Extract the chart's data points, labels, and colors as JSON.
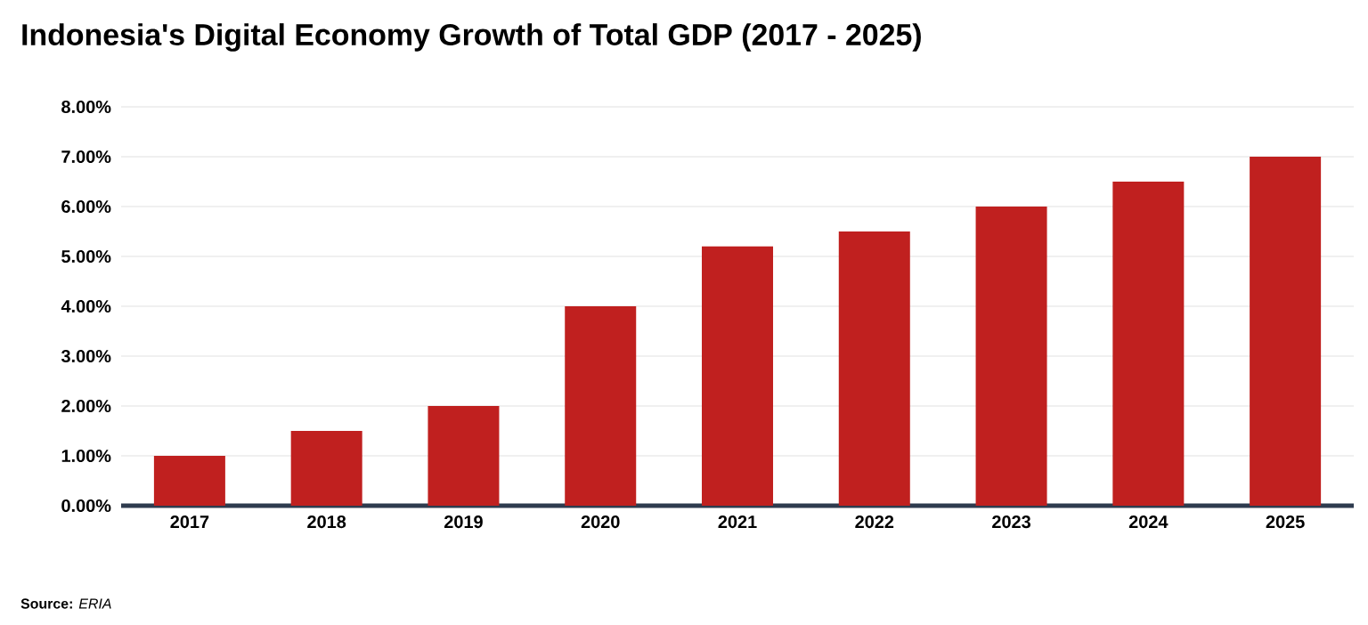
{
  "chart_data": {
    "type": "bar",
    "title": "Indonesia's Digital Economy Growth of Total GDP (2017 - 2025)",
    "categories": [
      "2017",
      "2018",
      "2019",
      "2020",
      "2021",
      "2022",
      "2023",
      "2024",
      "2025"
    ],
    "values": [
      1.0,
      1.5,
      2.0,
      4.0,
      5.2,
      5.5,
      6.0,
      6.5,
      7.0
    ],
    "color": "#c0201f",
    "ylim": [
      0,
      8
    ],
    "yticks": [
      {
        "value": 0,
        "label": "0.00%"
      },
      {
        "value": 1,
        "label": "1.00%"
      },
      {
        "value": 2,
        "label": "2.00%"
      },
      {
        "value": 3,
        "label": "3.00%"
      },
      {
        "value": 4,
        "label": "4.00%"
      },
      {
        "value": 5,
        "label": "5.00%"
      },
      {
        "value": 6,
        "label": "6.00%"
      },
      {
        "value": 7,
        "label": "7.00%"
      },
      {
        "value": 8,
        "label": "8.00%"
      }
    ],
    "grid": "y",
    "annotations": [
      "**Source:** *ERIA*"
    ]
  }
}
